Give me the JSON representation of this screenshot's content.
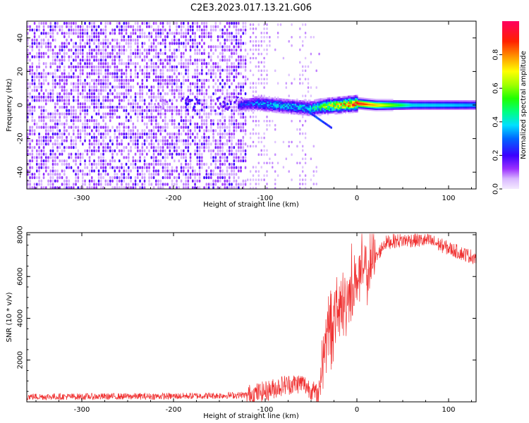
{
  "title": "C2E3.2023.017.13.21.G06",
  "colors": {
    "snr_line": "#f03030",
    "spectro_weak": "#e2c8ff",
    "spectro_mid": "#8a2be2",
    "spectro_strong": "#3c00f0"
  },
  "chart_data": [
    {
      "type": "heatmap",
      "title": "",
      "xlabel": "Height of straight line (km)",
      "ylabel": "Frequency (Hz)",
      "xlim": [
        -360,
        130
      ],
      "ylim": [
        -50,
        50
      ],
      "x_ticks": [
        -300,
        -200,
        -100,
        0,
        100
      ],
      "y_ticks": [
        -40,
        -20,
        0,
        20,
        40
      ],
      "colorbar": {
        "label": "Normalized spectral amplitude",
        "range": [
          0,
          1
        ],
        "ticks": [
          "0.0",
          "0.2",
          "0.4",
          "0.6",
          "0.8"
        ]
      },
      "ridge": {
        "x": [
          -130,
          -110,
          -90,
          -70,
          -50,
          -40,
          -20,
          0,
          20,
          60,
          100,
          130
        ],
        "freq_center": [
          0,
          1,
          0,
          -1,
          -2,
          -1,
          0,
          1,
          0,
          0,
          0,
          0
        ],
        "amplitude": [
          0.22,
          0.35,
          0.4,
          0.42,
          0.45,
          0.6,
          0.8,
          0.95,
          0.75,
          0.4,
          0.38,
          0.35
        ]
      },
      "noise_region_x": [
        -360,
        -120
      ]
    },
    {
      "type": "line",
      "title": "",
      "xlabel": "Height of straight line (km)",
      "ylabel": "SNR (10 * v/v)",
      "xlim": [
        -360,
        130
      ],
      "ylim": [
        0,
        8100
      ],
      "x_ticks": [
        -300,
        -200,
        -100,
        0,
        100
      ],
      "y_ticks": [
        2000,
        4000,
        6000,
        8000
      ],
      "series": [
        {
          "name": "",
          "x": [
            -360,
            -300,
            -200,
            -150,
            -120,
            -100,
            -80,
            -60,
            -50,
            -42,
            -35,
            -30,
            -25,
            -20,
            -15,
            -10,
            -5,
            0,
            10,
            20,
            30,
            40,
            60,
            80,
            100,
            115,
            130
          ],
          "y": [
            250,
            250,
            270,
            300,
            330,
            500,
            800,
            900,
            600,
            300,
            3000,
            3600,
            3900,
            4400,
            4600,
            5000,
            5600,
            5900,
            6300,
            6800,
            7600,
            7700,
            7750,
            7700,
            7350,
            7100,
            6900
          ]
        }
      ]
    }
  ]
}
